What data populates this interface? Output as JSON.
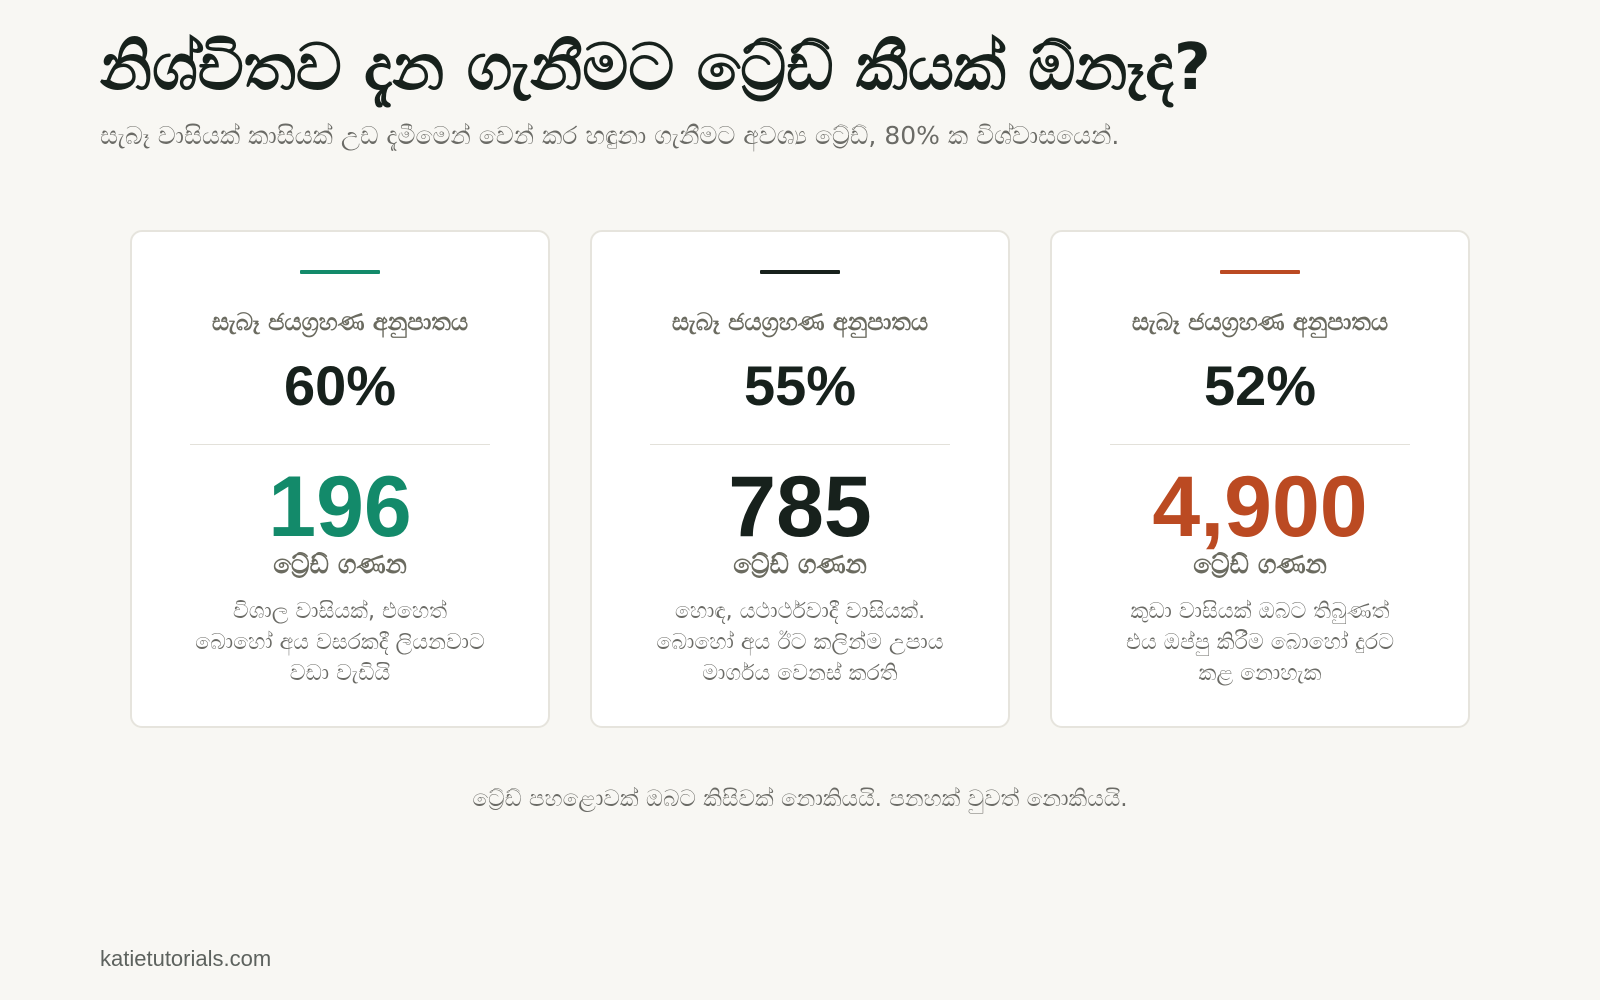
{
  "title": "නිශ්චිතව දැන ගැනීමට ට්‍රේඩ් කීයක් ඕනෑද?",
  "subtitle": "සැබෑ වාසියක් කාසියක් උඩ දැමීමෙන් වෙන් කර හඳුනා ගැනීමට අවශ්‍ය ට්‍රේඩ්, 80% ක විශ්වාසයෙන්.",
  "cards": [
    {
      "label": "සැබෑ ජයග්‍රහණ අනුපාතය",
      "rate": "60%",
      "count": "196",
      "count_label": "ට්‍රේඩ් ගණන",
      "note": "විශාල වාසියක්, එහෙත් බොහෝ අය වසරකදී ලියනවාට වඩා වැඩියි",
      "accent_color": "#138a6a"
    },
    {
      "label": "සැබෑ ජයග්‍රහණ අනුපාතය",
      "rate": "55%",
      "count": "785",
      "count_label": "ට්‍රේඩ් ගණන",
      "note": "හොඳ, යථාර්ථවාදී වාසියක්. බොහෝ අය ඊට කලින්ම උපාය මාර්ගය වෙනස් කරති",
      "accent_color": "#17211c"
    },
    {
      "label": "සැබෑ ජයග්‍රහණ අනුපාතය",
      "rate": "52%",
      "count": "4,900",
      "count_label": "ට්‍රේඩ් ගණන",
      "note": "කුඩා වාසියක් ඔබට තිබුණත් එය ඔප්පු කිරීම බොහෝ දුරට කළ නොහැක",
      "accent_color": "#bb4a22"
    }
  ],
  "footer_text": "ට්‍රේඩ් පහළොවක් ඔබට කිසිවක් නොකියයි. පනහක් වුවත් නොකියයි.",
  "site": "katietutorials.com"
}
